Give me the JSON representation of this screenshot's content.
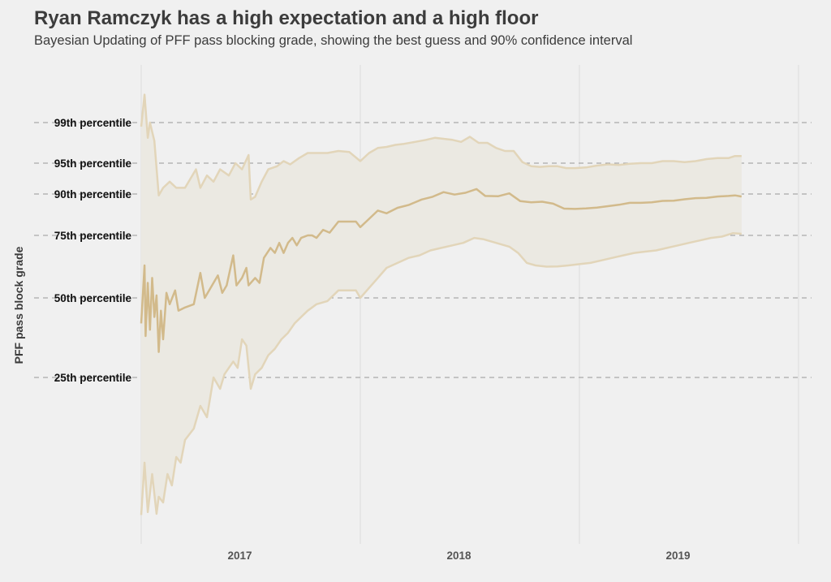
{
  "title": "Ryan Ramczyk has a high expectation and a high floor",
  "subtitle": "Bayesian Updating of PFF pass blocking grade, showing the best guess and 90% confidence interval",
  "chart_data": {
    "type": "line",
    "title": "Ryan Ramczyk has a high expectation and a high floor",
    "subtitle": "Bayesian Updating of PFF pass blocking grade, showing the best guess and 90% confidence interval",
    "xlabel": "",
    "ylabel": "PFF pass block grade",
    "x_categories": [
      "2017",
      "2018",
      "2019"
    ],
    "y_ticks": [
      {
        "label": "25th percentile",
        "percentile": 25
      },
      {
        "label": "50th percentile",
        "percentile": 50
      },
      {
        "label": "75th percentile",
        "percentile": 75
      },
      {
        "label": "90th percentile",
        "percentile": 90
      },
      {
        "label": "95th percentile",
        "percentile": 95
      },
      {
        "label": "99th percentile",
        "percentile": 99
      }
    ],
    "y_gridlines": "dashed",
    "x_gridlines": "solid",
    "legend": "none",
    "colors": {
      "background": "#f0f0f0",
      "estimate_line": "#d2ba8b",
      "interval_lines": "#e2d5b9",
      "interval_fill": "#ebe9e2",
      "grid": "#999999"
    },
    "note": "x values are season progress (2017 season spans 0-1, 2018 spans 1-2, 2019 spans 2-3); y values are percentile of PFF pass block grade",
    "series": [
      {
        "role": "estimate",
        "points": [
          [
            0.0,
            42
          ],
          [
            0.015,
            63
          ],
          [
            0.02,
            38
          ],
          [
            0.03,
            56
          ],
          [
            0.04,
            40
          ],
          [
            0.05,
            58
          ],
          [
            0.06,
            44
          ],
          [
            0.07,
            51
          ],
          [
            0.08,
            33
          ],
          [
            0.09,
            46
          ],
          [
            0.1,
            37
          ],
          [
            0.115,
            52
          ],
          [
            0.13,
            48
          ],
          [
            0.155,
            53
          ],
          [
            0.17,
            46
          ],
          [
            0.2,
            47
          ],
          [
            0.24,
            48
          ],
          [
            0.27,
            60
          ],
          [
            0.29,
            50
          ],
          [
            0.33,
            56
          ],
          [
            0.35,
            59
          ],
          [
            0.37,
            52
          ],
          [
            0.39,
            55
          ],
          [
            0.42,
            67
          ],
          [
            0.435,
            55
          ],
          [
            0.46,
            58
          ],
          [
            0.48,
            62
          ],
          [
            0.49,
            55
          ],
          [
            0.52,
            58
          ],
          [
            0.54,
            56
          ],
          [
            0.56,
            66
          ],
          [
            0.59,
            70
          ],
          [
            0.61,
            68
          ],
          [
            0.63,
            72
          ],
          [
            0.65,
            68
          ],
          [
            0.67,
            72
          ],
          [
            0.69,
            74
          ],
          [
            0.71,
            71
          ],
          [
            0.73,
            74
          ],
          [
            0.76,
            75
          ],
          [
            0.78,
            75
          ],
          [
            0.8,
            74
          ],
          [
            0.83,
            77
          ],
          [
            0.86,
            76
          ],
          [
            0.9,
            80
          ],
          [
            0.93,
            80
          ],
          [
            0.98,
            80
          ],
          [
            1.0,
            78
          ],
          [
            1.04,
            81
          ],
          [
            1.08,
            84
          ],
          [
            1.12,
            83
          ],
          [
            1.17,
            85
          ],
          [
            1.22,
            86
          ],
          [
            1.28,
            88
          ],
          [
            1.33,
            89
          ],
          [
            1.38,
            90.3
          ],
          [
            1.43,
            89.8
          ],
          [
            1.48,
            90.2
          ],
          [
            1.53,
            90.8
          ],
          [
            1.57,
            89.3
          ],
          [
            1.63,
            89.2
          ],
          [
            1.68,
            90.1
          ],
          [
            1.73,
            87.4
          ],
          [
            1.78,
            87
          ],
          [
            1.83,
            87.2
          ],
          [
            1.88,
            86.5
          ],
          [
            1.93,
            84.7
          ],
          [
            1.98,
            84.6
          ],
          [
            2.03,
            84.8
          ],
          [
            2.08,
            85.1
          ],
          [
            2.13,
            85.6
          ],
          [
            2.18,
            86.1
          ],
          [
            2.23,
            86.8
          ],
          [
            2.28,
            86.8
          ],
          [
            2.33,
            87
          ],
          [
            2.38,
            87.5
          ],
          [
            2.43,
            87.6
          ],
          [
            2.48,
            88.1
          ],
          [
            2.53,
            88.5
          ],
          [
            2.58,
            88.6
          ],
          [
            2.63,
            89.1
          ],
          [
            2.68,
            89.3
          ],
          [
            2.71,
            89.5
          ],
          [
            2.74,
            89.1
          ]
        ]
      },
      {
        "role": "upper_90",
        "points": [
          [
            0.0,
            98.6
          ],
          [
            0.015,
            99.8
          ],
          [
            0.03,
            97.5
          ],
          [
            0.04,
            99.0
          ],
          [
            0.06,
            97.2
          ],
          [
            0.08,
            89.5
          ],
          [
            0.1,
            91
          ],
          [
            0.13,
            92
          ],
          [
            0.16,
            91
          ],
          [
            0.2,
            91
          ],
          [
            0.25,
            94
          ],
          [
            0.27,
            91
          ],
          [
            0.3,
            93
          ],
          [
            0.33,
            92
          ],
          [
            0.36,
            94
          ],
          [
            0.4,
            93
          ],
          [
            0.43,
            95
          ],
          [
            0.46,
            94
          ],
          [
            0.49,
            95.8
          ],
          [
            0.5,
            88
          ],
          [
            0.52,
            89
          ],
          [
            0.55,
            92
          ],
          [
            0.58,
            94
          ],
          [
            0.62,
            94.5
          ],
          [
            0.65,
            95.2
          ],
          [
            0.68,
            94.8
          ],
          [
            0.72,
            95.5
          ],
          [
            0.76,
            96
          ],
          [
            0.8,
            96
          ],
          [
            0.85,
            96
          ],
          [
            0.9,
            96.2
          ],
          [
            0.95,
            96.1
          ],
          [
            1.0,
            95.2
          ],
          [
            1.04,
            96
          ],
          [
            1.08,
            96.5
          ],
          [
            1.12,
            96.6
          ],
          [
            1.16,
            96.8
          ],
          [
            1.2,
            96.9
          ],
          [
            1.25,
            97.1
          ],
          [
            1.3,
            97.3
          ],
          [
            1.34,
            97.5
          ],
          [
            1.38,
            97.4
          ],
          [
            1.42,
            97.3
          ],
          [
            1.46,
            97.1
          ],
          [
            1.5,
            97.6
          ],
          [
            1.54,
            97.0
          ],
          [
            1.58,
            97.0
          ],
          [
            1.62,
            96.5
          ],
          [
            1.66,
            96.2
          ],
          [
            1.7,
            96.2
          ],
          [
            1.74,
            95.1
          ],
          [
            1.78,
            94.5
          ],
          [
            1.82,
            94.4
          ],
          [
            1.86,
            94.5
          ],
          [
            1.9,
            94.5
          ],
          [
            1.94,
            94.2
          ],
          [
            1.98,
            94.2
          ],
          [
            2.03,
            94.3
          ],
          [
            2.08,
            94.6
          ],
          [
            2.13,
            94.8
          ],
          [
            2.18,
            94.7
          ],
          [
            2.23,
            94.9
          ],
          [
            2.28,
            95.0
          ],
          [
            2.33,
            95.0
          ],
          [
            2.38,
            95.2
          ],
          [
            2.43,
            95.2
          ],
          [
            2.48,
            95.1
          ],
          [
            2.53,
            95.2
          ],
          [
            2.58,
            95.4
          ],
          [
            2.63,
            95.5
          ],
          [
            2.68,
            95.5
          ],
          [
            2.71,
            95.7
          ],
          [
            2.74,
            95.7
          ]
        ]
      },
      {
        "role": "lower_90",
        "points": [
          [
            0.0,
            0.8
          ],
          [
            0.015,
            10
          ],
          [
            0.03,
            1.3
          ],
          [
            0.05,
            8
          ],
          [
            0.07,
            1.0
          ],
          [
            0.08,
            4
          ],
          [
            0.1,
            3
          ],
          [
            0.12,
            8
          ],
          [
            0.14,
            6
          ],
          [
            0.16,
            11
          ],
          [
            0.18,
            10
          ],
          [
            0.2,
            14
          ],
          [
            0.24,
            16
          ],
          [
            0.27,
            20
          ],
          [
            0.3,
            18
          ],
          [
            0.33,
            25
          ],
          [
            0.36,
            23
          ],
          [
            0.38,
            26
          ],
          [
            0.4,
            28
          ],
          [
            0.42,
            30
          ],
          [
            0.44,
            28
          ],
          [
            0.46,
            37
          ],
          [
            0.48,
            35
          ],
          [
            0.5,
            23
          ],
          [
            0.52,
            26
          ],
          [
            0.55,
            28
          ],
          [
            0.58,
            32
          ],
          [
            0.61,
            34
          ],
          [
            0.64,
            37
          ],
          [
            0.67,
            39
          ],
          [
            0.7,
            42
          ],
          [
            0.73,
            44
          ],
          [
            0.76,
            46
          ],
          [
            0.78,
            47
          ],
          [
            0.8,
            48
          ],
          [
            0.85,
            49
          ],
          [
            0.9,
            53
          ],
          [
            0.95,
            53
          ],
          [
            0.98,
            53
          ],
          [
            1.0,
            50
          ],
          [
            1.04,
            54
          ],
          [
            1.08,
            58
          ],
          [
            1.12,
            62
          ],
          [
            1.17,
            64
          ],
          [
            1.22,
            66
          ],
          [
            1.27,
            67
          ],
          [
            1.32,
            69
          ],
          [
            1.37,
            70
          ],
          [
            1.42,
            71
          ],
          [
            1.47,
            72
          ],
          [
            1.52,
            74
          ],
          [
            1.56,
            73.5
          ],
          [
            1.6,
            72.5
          ],
          [
            1.64,
            71.5
          ],
          [
            1.68,
            70.5
          ],
          [
            1.72,
            68
          ],
          [
            1.76,
            64
          ],
          [
            1.8,
            63
          ],
          [
            1.85,
            62.5
          ],
          [
            1.9,
            62.6
          ],
          [
            1.95,
            63
          ],
          [
            2.0,
            63.5
          ],
          [
            2.05,
            64
          ],
          [
            2.1,
            65
          ],
          [
            2.15,
            66
          ],
          [
            2.2,
            67
          ],
          [
            2.25,
            68
          ],
          [
            2.3,
            68.5
          ],
          [
            2.35,
            69
          ],
          [
            2.4,
            70
          ],
          [
            2.45,
            71
          ],
          [
            2.5,
            72
          ],
          [
            2.55,
            73
          ],
          [
            2.6,
            74
          ],
          [
            2.65,
            74.5
          ],
          [
            2.7,
            75.8
          ],
          [
            2.74,
            75.6
          ]
        ]
      }
    ]
  }
}
